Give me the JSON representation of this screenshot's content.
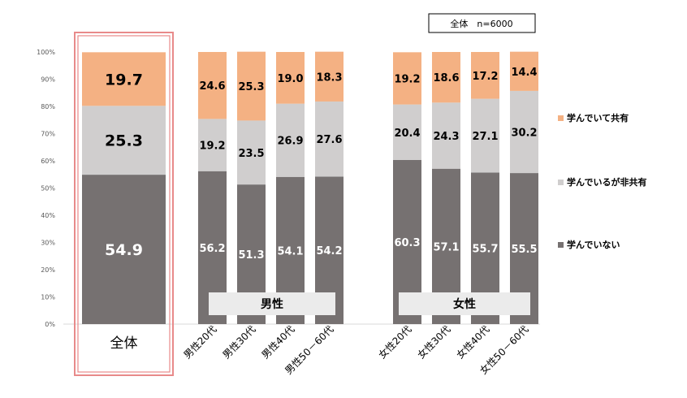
{
  "chart_data": {
    "type": "stacked-bar-100",
    "note": "全体　n=6000",
    "yticks": [
      "0%",
      "10%",
      "20%",
      "30%",
      "40%",
      "50%",
      "60%",
      "70%",
      "80%",
      "90%",
      "100%"
    ],
    "ylim": [
      0,
      100
    ],
    "categories": [
      "全体",
      "男性20代",
      "男性30代",
      "男性40代",
      "男性50－60代",
      "女性20代",
      "女性30代",
      "女性40代",
      "女性50－60代"
    ],
    "groups": [
      {
        "label": "男性",
        "members": [
          "男性20代",
          "男性30代",
          "男性40代",
          "男性50－60代"
        ]
      },
      {
        "label": "女性",
        "members": [
          "女性20代",
          "女性30代",
          "女性40代",
          "女性50－60代"
        ]
      }
    ],
    "series": [
      {
        "name": "学んでいない",
        "color": "#767171",
        "label_color": "#ffffff",
        "values": [
          54.9,
          56.2,
          51.3,
          54.1,
          54.2,
          60.3,
          57.1,
          55.7,
          55.5
        ],
        "labels": [
          "54.9",
          "56.2",
          "51.3",
          "54.1",
          "54.2",
          "60.3",
          "57.1",
          "55.7",
          "55.5"
        ]
      },
      {
        "name": "学んでいるが非共有",
        "color": "#d0cece",
        "label_color": "#000000",
        "values": [
          25.3,
          19.2,
          23.5,
          26.9,
          27.6,
          20.4,
          24.3,
          27.1,
          30.2
        ],
        "labels": [
          "25.3",
          "19.2",
          "23.5",
          "26.9",
          "27.6",
          "20.4",
          "24.3",
          "27.1",
          "30.2"
        ]
      },
      {
        "name": "学んでいて共有",
        "color": "#f4b183",
        "label_color": "#000000",
        "values": [
          19.7,
          24.6,
          25.3,
          19.0,
          18.3,
          19.2,
          18.6,
          17.2,
          14.4
        ],
        "labels": [
          "19.7",
          "24.6",
          "25.3",
          "19.0",
          "18.3",
          "19.2",
          "18.6",
          "17.2",
          "14.4"
        ]
      }
    ],
    "legend_order": [
      "学んでいて共有",
      "学んでいるが非共有",
      "学んでいない"
    ],
    "highlight_category": "全体",
    "highlight_color": "#e88a8a"
  }
}
